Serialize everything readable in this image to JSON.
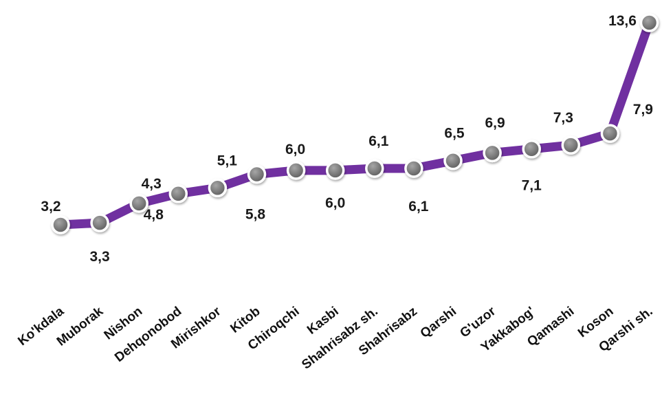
{
  "chart_data": {
    "type": "line",
    "categories": [
      "Ko'kdala",
      "Muborak",
      "Nishon",
      "Dehqonobod",
      "Mirishkor",
      "Kitob",
      "Chiroqchi",
      "Kasbi",
      "Shahrisabz sh.",
      "Shahrisabz",
      "Qarshi",
      "G'uzor",
      "Yakkabog'",
      "Qamashi",
      "Koson",
      "Qarshi sh."
    ],
    "values": [
      3.2,
      3.3,
      4.3,
      4.8,
      5.1,
      5.8,
      6.0,
      6.0,
      6.1,
      6.1,
      6.5,
      6.9,
      7.1,
      7.3,
      7.9,
      13.6
    ],
    "value_labels": [
      "3,2",
      "3,3",
      "4,3",
      "4,8",
      "5,1",
      "5,8",
      "6,0",
      "6,0",
      "6,1",
      "6,1",
      "6,5",
      "6,9",
      "7,1",
      "7,3",
      "7,9",
      "13,6"
    ],
    "title": "",
    "xlabel": "",
    "ylabel": "",
    "ylim": [
      2,
      14
    ],
    "grid": false,
    "legend": "none",
    "colors": {
      "line": "#7030a0",
      "marker": "#7f7f7f",
      "marker_edge": "#ffffff"
    }
  }
}
